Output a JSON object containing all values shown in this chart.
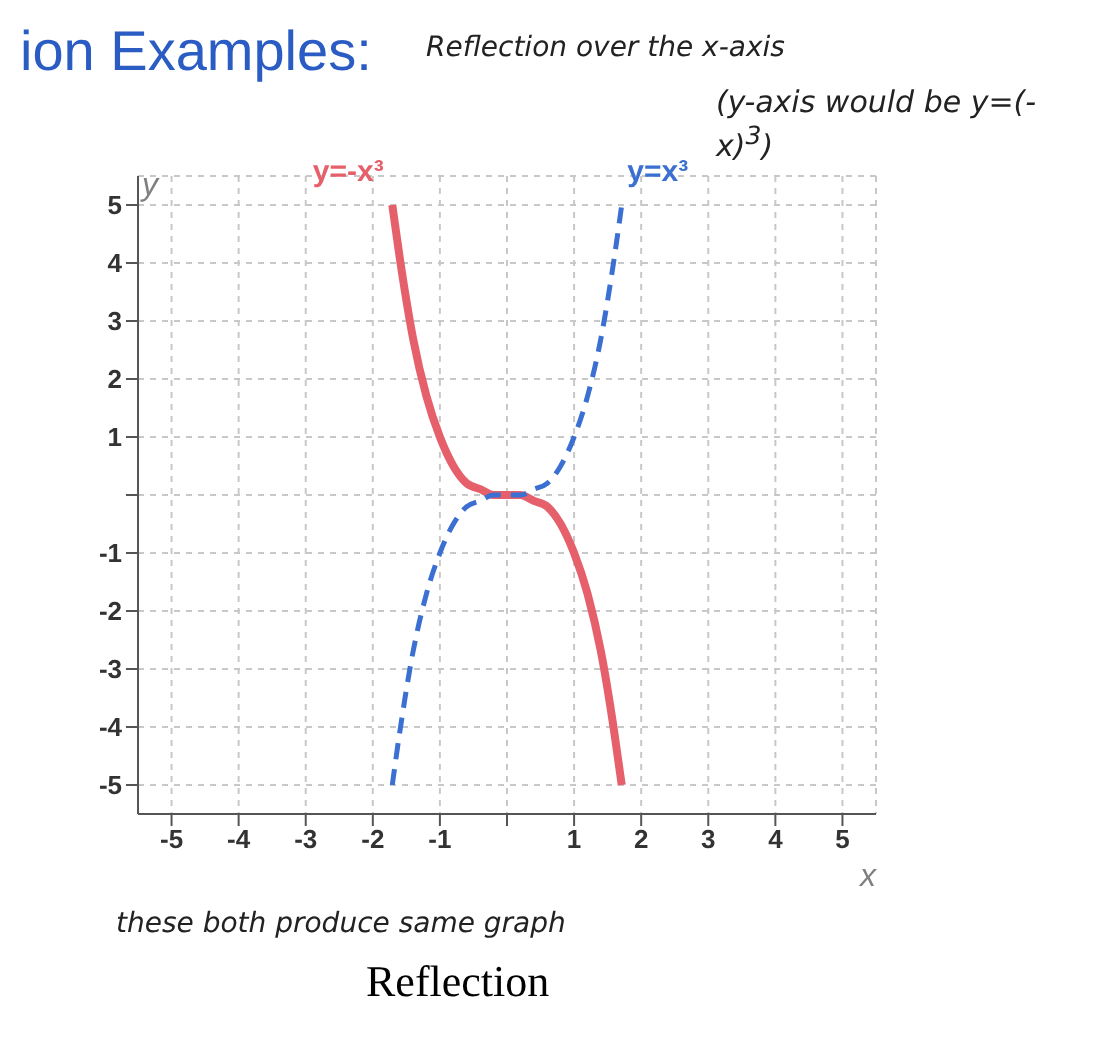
{
  "chart_data": {
    "type": "line",
    "title": "ion Examples:",
    "xlabel": "x",
    "ylabel": "y",
    "x": [
      -1.71,
      -1.6,
      -1.4,
      -1.2,
      -1,
      -0.8,
      -0.6,
      -0.4,
      -0.2,
      0,
      0.2,
      0.4,
      0.6,
      0.8,
      1,
      1.2,
      1.4,
      1.6,
      1.71
    ],
    "series": [
      {
        "name": "y=-x³",
        "color": "#e5606b",
        "line_style": "solid",
        "values": [
          5,
          4.1,
          2.7,
          1.7,
          1,
          0.5,
          0.2,
          0.1,
          0,
          0,
          0,
          -0.1,
          -0.2,
          -0.5,
          -1,
          -1.7,
          -2.7,
          -4.1,
          -5
        ]
      },
      {
        "name": "y=x³",
        "color": "#3b6fd1",
        "line_style": "dashed",
        "values": [
          -5,
          -4.1,
          -2.7,
          -1.7,
          -1,
          -0.5,
          -0.2,
          -0.1,
          0,
          0,
          0,
          0.1,
          0.2,
          0.5,
          1,
          1.7,
          2.7,
          4.1,
          5
        ]
      }
    ],
    "xlim": [
      -5.5,
      5.5
    ],
    "ylim": [
      -5.5,
      5.5
    ],
    "xticks": [
      -5,
      -4,
      -3,
      -2,
      -1,
      {
        "value": 0,
        "label": null
      },
      1,
      2,
      3,
      4,
      5
    ],
    "yticks": [
      -5,
      -4,
      -3,
      -2,
      -1,
      {
        "value": 0,
        "label": null
      },
      1,
      2,
      3,
      4,
      5
    ],
    "grid": true,
    "marker": "none",
    "annotations": [
      "Reflection over the x-axis",
      "(y-axis would be y=(-x)$^{3}$)",
      "these both produce same graph",
      "Reflection"
    ]
  }
}
